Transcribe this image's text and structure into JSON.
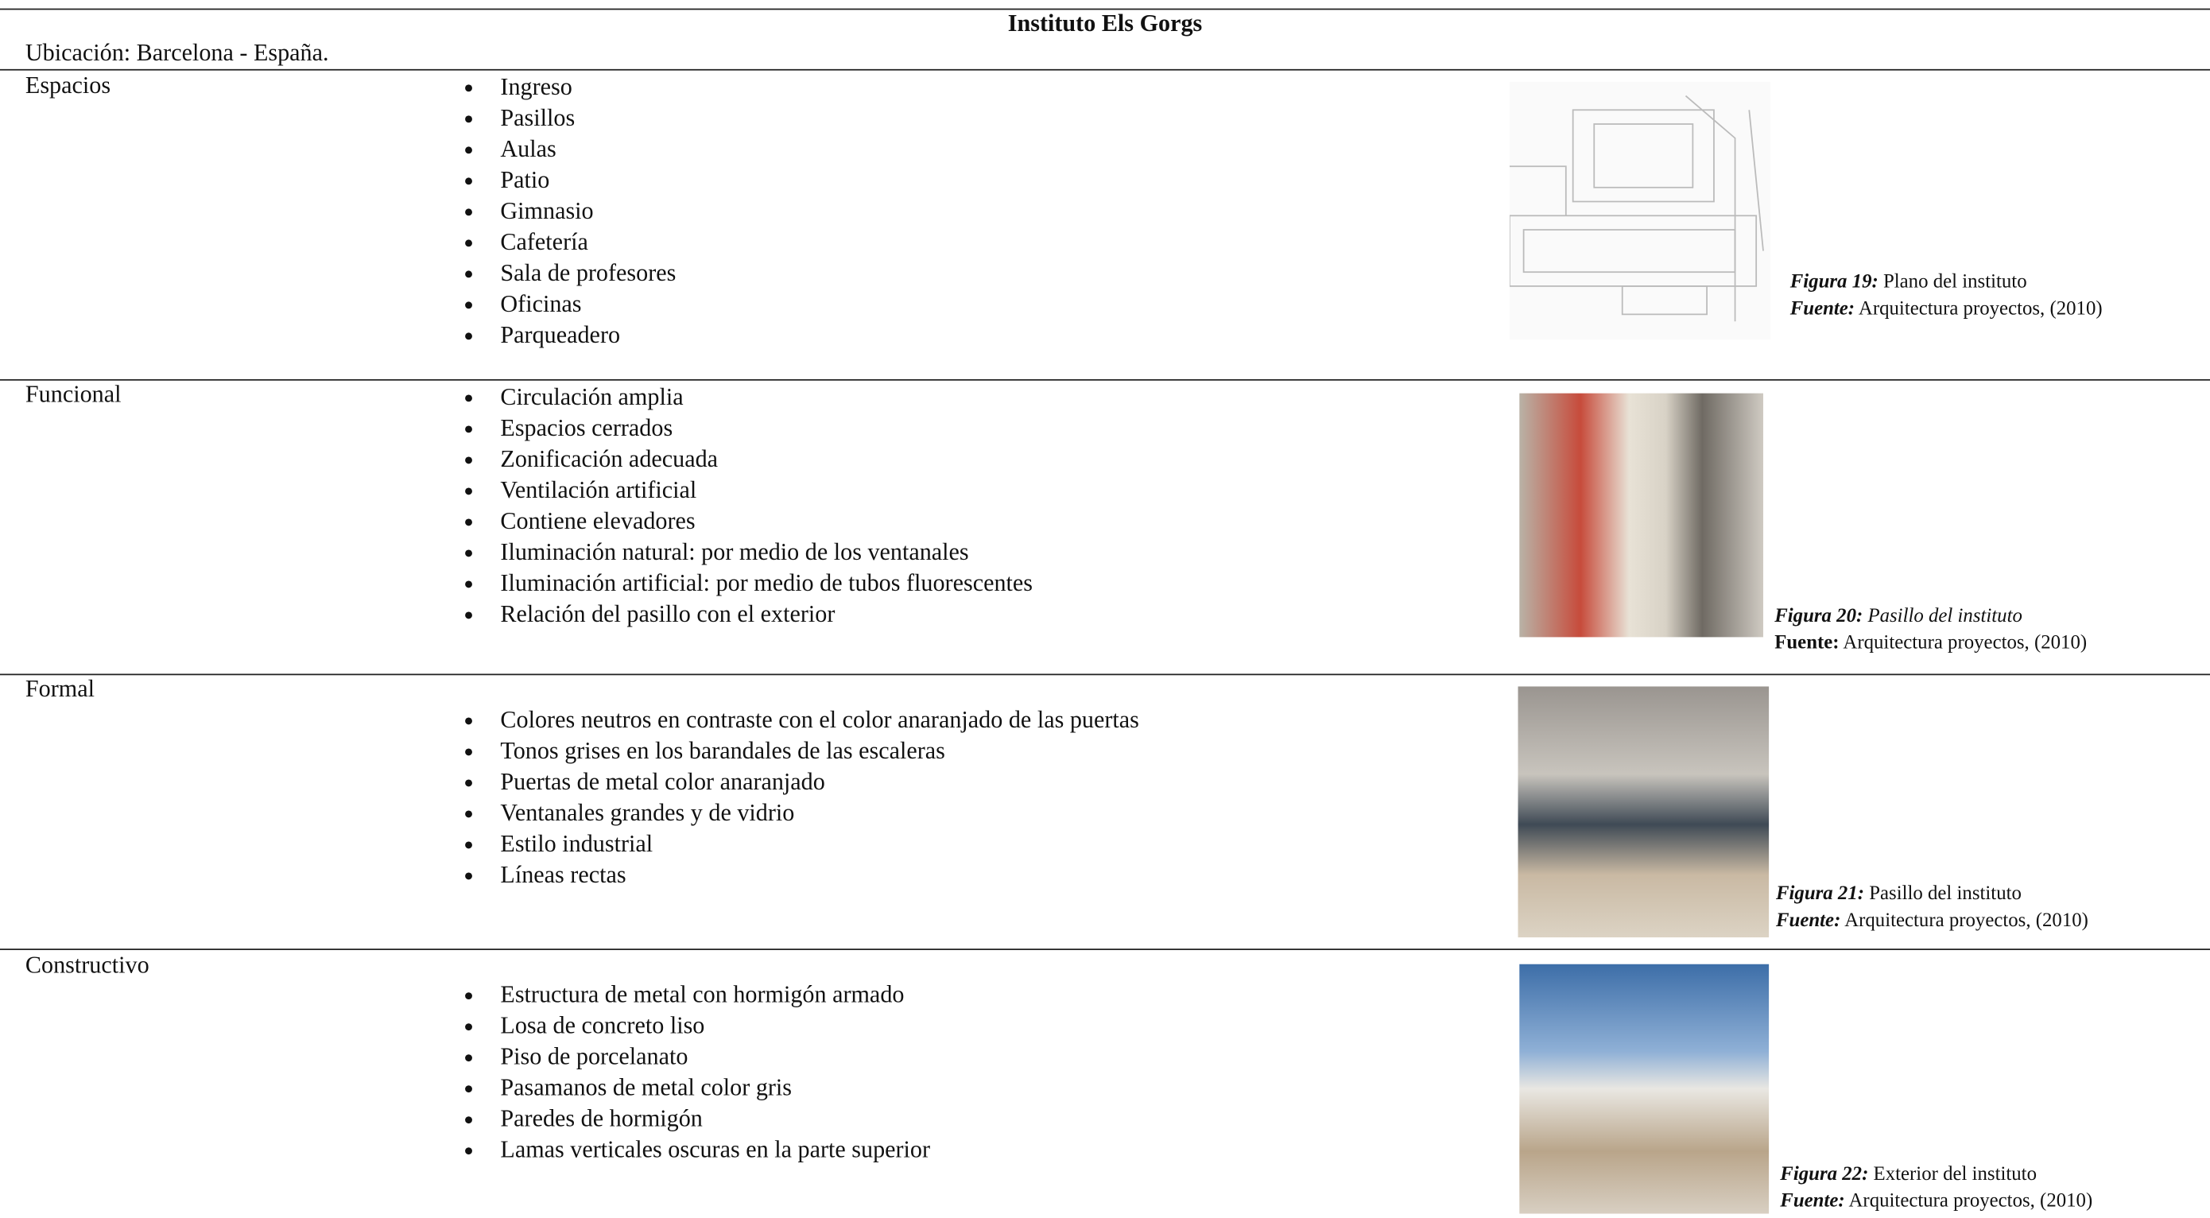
{
  "header": {
    "title": "Instituto Els Gorgs",
    "location": "Ubicación: Barcelona - España."
  },
  "rows": [
    {
      "label": "Espacios",
      "items": [
        "Ingreso",
        "Pasillos",
        "Aulas",
        "Patio",
        "Gimnasio",
        "Cafetería",
        "Sala de profesores",
        "Oficinas",
        "Parqueadero"
      ],
      "figure": {
        "number": "Figura 19:",
        "caption": "Plano del instituto",
        "source_label": "Fuente:",
        "source": "Arquitectura proyectos, (2010)"
      }
    },
    {
      "label": "Funcional",
      "items": [
        "Circulación amplia",
        "Espacios cerrados",
        "Zonificación adecuada",
        "Ventilación artificial",
        "Contiene elevadores",
        "Iluminación natural: por medio de los ventanales",
        "Iluminación artificial: por medio de tubos fluorescentes",
        "Relación del pasillo con el exterior"
      ],
      "figure": {
        "number": "Figura 20:",
        "caption": "Pasillo del instituto",
        "source_label": "Fuente:",
        "source": "Arquitectura proyectos, (2010)"
      }
    },
    {
      "label": "Formal",
      "items": [
        "Colores neutros en contraste con el color anaranjado de las puertas",
        "Tonos grises en los barandales de las escaleras",
        "Puertas de metal color anaranjado",
        "Ventanales grandes y de vidrio",
        "Estilo industrial",
        "Líneas rectas"
      ],
      "figure": {
        "number": "Figura 21:",
        "caption": "Pasillo del instituto",
        "source_label": "Fuente:",
        "source": "Arquitectura proyectos, (2010)"
      }
    },
    {
      "label": "Constructivo",
      "items": [
        "Estructura de metal con hormigón armado",
        "Losa de concreto liso",
        "Piso de porcelanato",
        "Pasamanos de metal color gris",
        "Paredes de hormigón",
        "Lamas verticales oscuras en la parte superior"
      ],
      "figure": {
        "number": "Figura 22:",
        "caption": "Exterior del instituto",
        "source_label": "Fuente:",
        "source": "Arquitectura proyectos, (2010)"
      }
    }
  ]
}
